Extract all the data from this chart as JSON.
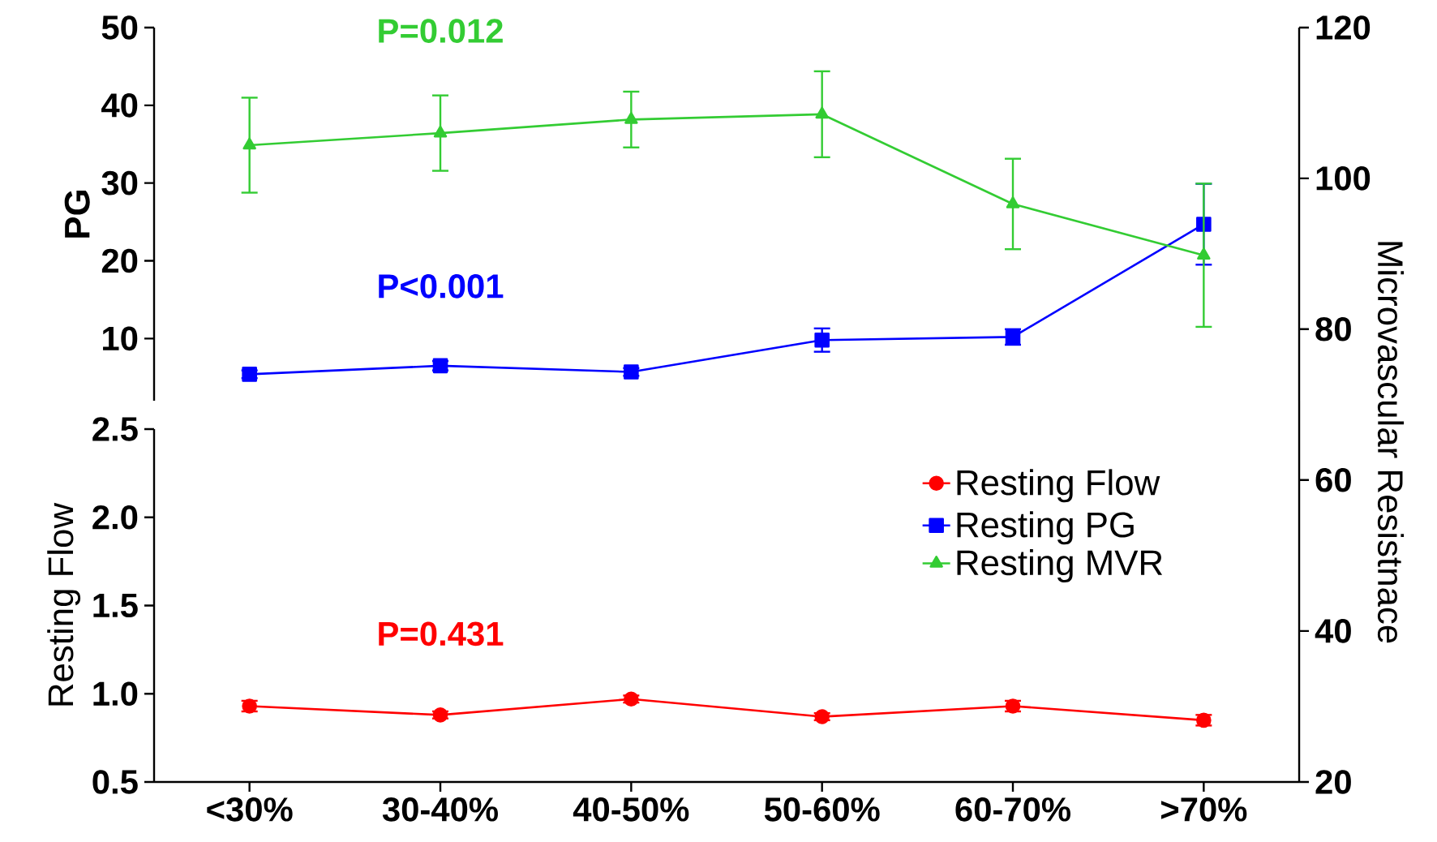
{
  "chart_data": [
    {
      "type": "line",
      "categories": [
        null,
        null,
        null,
        null,
        null,
        null
      ],
      "tick_labels": "y",
      "ylabel": "PG",
      "ylim": [
        2,
        50
      ],
      "yticks": [
        10,
        20,
        30,
        40,
        50
      ],
      "y2label": "Microvascular  Resistnace",
      "y2lim": [
        70.5,
        120
      ],
      "y2ticks": [
        80,
        100,
        120
      ],
      "legend": "bottom",
      "line_style": "solid",
      "series": [
        {
          "name": "Resting PG",
          "color": "#0000ff",
          "marker": "square",
          "values": [
            5.4,
            6.5,
            5.7,
            9.8,
            10.2,
            24.7
          ],
          "errors": [
            0.5,
            0.6,
            0.5,
            1.5,
            1.0,
            5.2
          ]
        },
        {
          "name": "Resting MVR",
          "color": "#33cc33",
          "axis": "y2",
          "marker": "triangle",
          "values": [
            104.4,
            106,
            107.8,
            108.5,
            96.6,
            89.8
          ],
          "errors": [
            6.3,
            5,
            3.7,
            5.7,
            6,
            9.5
          ]
        }
      ],
      "annotations": [
        "P<0.001",
        "P=0.012"
      ]
    },
    {
      "type": "line",
      "categories": [
        "<30%",
        "30-40%",
        "40-50%",
        "50-60%",
        "60-70%",
        ">70%"
      ],
      "ylabel": "Resting Flow",
      "ylim": [
        0.5,
        2.5
      ],
      "yticks": [
        {
          "value": 0.5,
          "label": "0.5"
        },
        {
          "value": 1.0,
          "label": "1.0"
        },
        {
          "value": 1.5,
          "label": "1.5"
        },
        {
          "value": 2.0,
          "label": "2.0"
        },
        {
          "value": 2.5,
          "label": "2.5"
        }
      ],
      "y2lim": [
        20,
        70.5
      ],
      "y2ticks": [
        20,
        40,
        60
      ],
      "legend": "right",
      "line_style": "solid",
      "series": [
        {
          "name": "Resting Flow",
          "color": "#ff0000",
          "marker": "circle",
          "values": [
            0.93,
            0.88,
            0.97,
            0.87,
            0.93,
            0.85
          ],
          "errors": [
            0.03,
            0.02,
            0.02,
            0.02,
            0.03,
            0.03
          ]
        }
      ],
      "annotations": [
        "P=0.431"
      ]
    }
  ]
}
